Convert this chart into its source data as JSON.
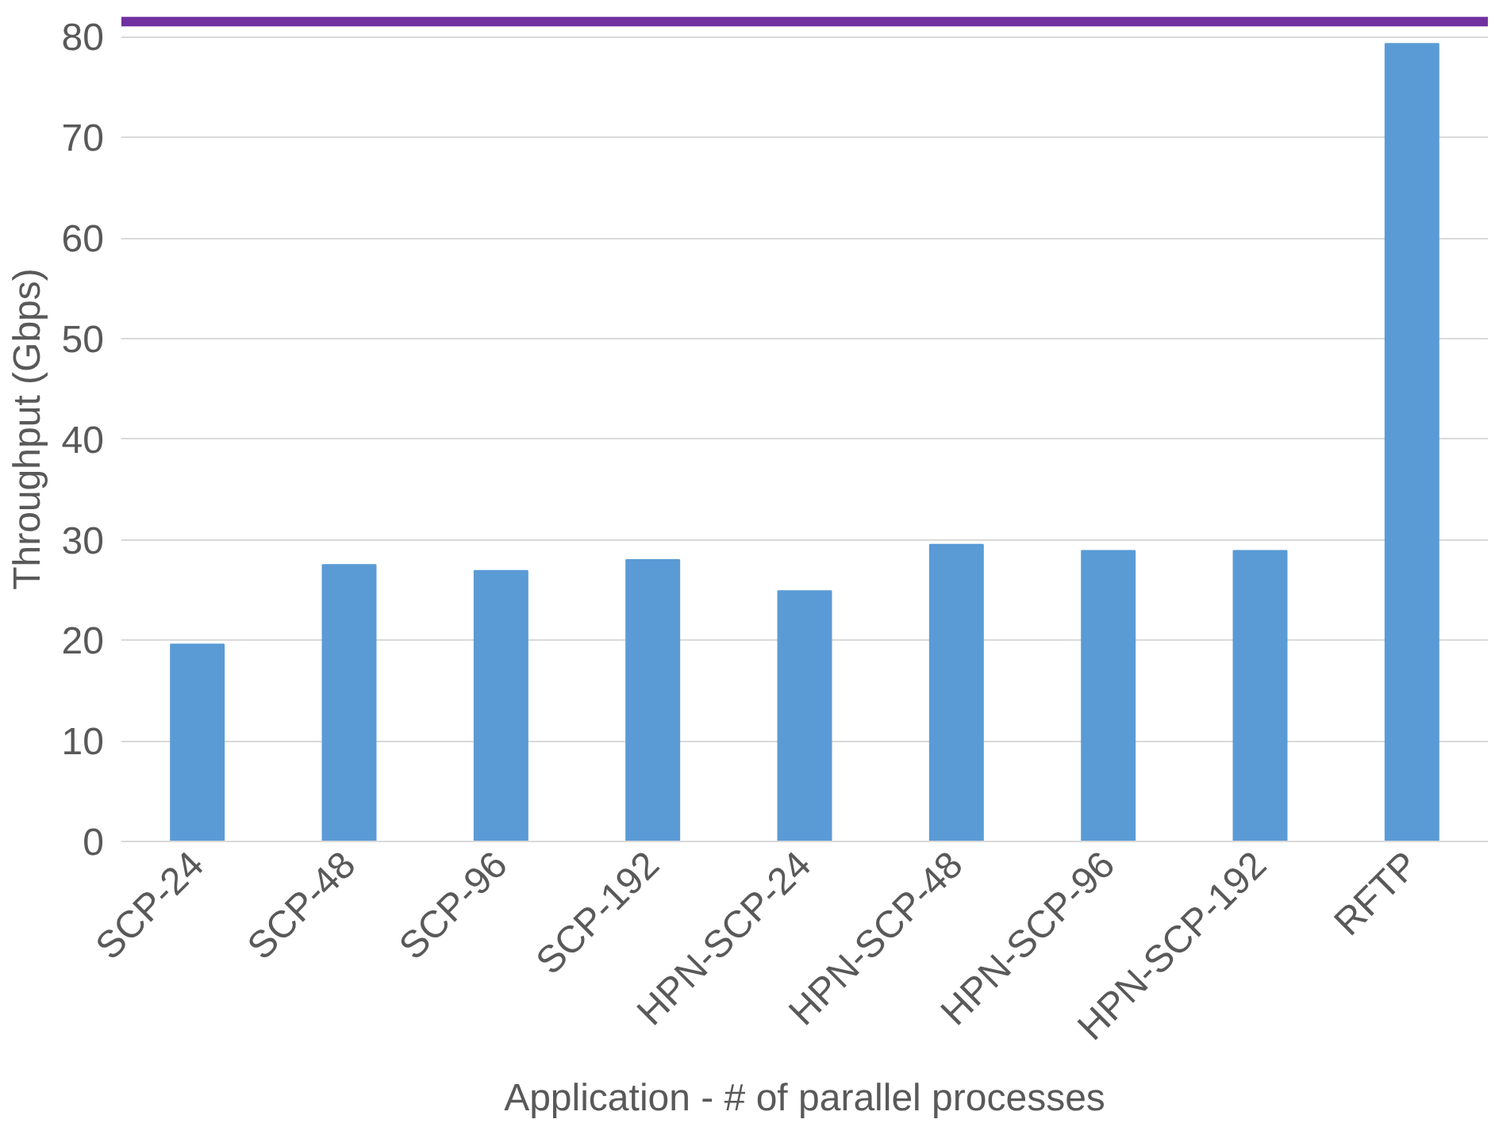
{
  "chart_data": {
    "type": "bar",
    "xlabel": "Application - # of parallel processes",
    "ylabel": "Throughput (Gbps)",
    "categories": [
      "SCP-24",
      "SCP-48",
      "SCP-96",
      "SCP-192",
      "HPN-SCP-24",
      "HPN-SCP-48",
      "HPN-SCP-96",
      "HPN-SCP-192",
      "RFTP"
    ],
    "values": [
      19.6,
      27.5,
      26.9,
      28.0,
      24.9,
      29.5,
      28.9,
      28.9,
      79.3
    ],
    "color": "#5b9bd5",
    "ylim": [
      0,
      82
    ],
    "yticks": [
      0,
      10,
      20,
      30,
      40,
      50,
      60,
      70,
      80
    ],
    "grid": "y",
    "ref_lines": [
      {
        "axis": "y",
        "value": 81.5,
        "label": null,
        "color": "#7030a0"
      }
    ]
  }
}
